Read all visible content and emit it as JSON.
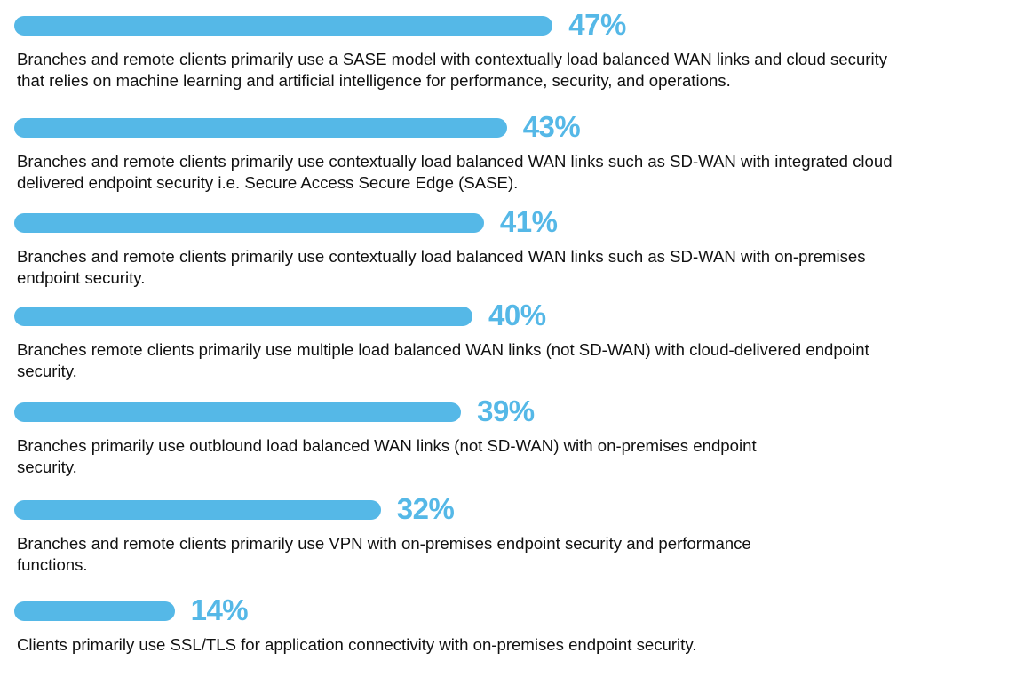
{
  "chart_data": {
    "type": "bar",
    "orientation": "horizontal",
    "unit": "%",
    "xlim": [
      0,
      47
    ],
    "grid": false,
    "colors": {
      "bar": "#55b8e7",
      "label": "#55b8e7",
      "text": "#111111"
    },
    "items": [
      {
        "value": 47,
        "label": "47%",
        "lines": [
          "Branches and remote clients primarily use a SASE model with contextually load balanced WAN links and cloud security",
          "that relies on machine learning and artificial intelligence for performance, security, and operations."
        ]
      },
      {
        "value": 43,
        "label": "43%",
        "lines": [
          "Branches and remote clients primarily use contextually load balanced WAN links such as SD-WAN with integrated cloud",
          "delivered endpoint security i.e. Secure Access Secure Edge (SASE)."
        ]
      },
      {
        "value": 41,
        "label": "41%",
        "lines": [
          "Branches and remote clients primarily use contextually load balanced WAN links such as SD-WAN with on-premises",
          "endpoint security."
        ]
      },
      {
        "value": 40,
        "label": "40%",
        "lines": [
          "Branches remote clients primarily use multiple load balanced WAN links (not SD-WAN) with cloud-delivered endpoint",
          "security."
        ]
      },
      {
        "value": 39,
        "label": "39%",
        "lines": [
          "Branches primarily use outblound load balanced WAN links (not SD-WAN) with on-premises endpoint",
          "security."
        ]
      },
      {
        "value": 32,
        "label": "32%",
        "lines": [
          "Branches and remote clients primarily use VPN with on-premises endpoint security and performance",
          "functions."
        ]
      },
      {
        "value": 14,
        "label": "14%",
        "lines": [
          "Clients primarily use SSL/TLS for application connectivity with on-premises endpoint security."
        ]
      }
    ]
  }
}
